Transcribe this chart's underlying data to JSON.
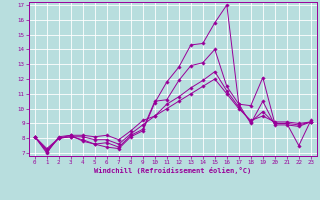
{
  "xlabel": "Windchill (Refroidissement éolien,°C)",
  "line_color": "#990099",
  "bg_color": "#b8dede",
  "grid_color": "#ffffff",
  "xlim": [
    -0.5,
    23.5
  ],
  "ylim": [
    6.8,
    17.2
  ],
  "xticks": [
    0,
    1,
    2,
    3,
    4,
    5,
    6,
    7,
    8,
    9,
    10,
    11,
    12,
    13,
    14,
    15,
    16,
    17,
    18,
    19,
    20,
    21,
    22,
    23
  ],
  "yticks": [
    7,
    8,
    9,
    10,
    11,
    12,
    13,
    14,
    15,
    16,
    17
  ],
  "lines": [
    {
      "x": [
        0,
        1,
        2,
        3,
        4,
        5,
        6,
        7,
        8,
        9,
        10,
        11,
        12,
        13,
        14,
        15,
        16,
        17,
        18,
        19,
        20,
        21,
        22,
        23
      ],
      "y": [
        8.1,
        7.0,
        8.1,
        8.2,
        7.8,
        7.6,
        7.4,
        7.3,
        8.1,
        8.5,
        10.4,
        11.8,
        12.8,
        14.3,
        14.4,
        15.8,
        17.0,
        10.3,
        10.2,
        12.1,
        9.0,
        9.0,
        7.5,
        9.2
      ]
    },
    {
      "x": [
        0,
        1,
        2,
        3,
        4,
        5,
        6,
        7,
        8,
        9,
        10,
        11,
        12,
        13,
        14,
        15,
        16,
        17,
        18,
        19,
        20,
        21,
        22,
        23
      ],
      "y": [
        8.1,
        7.1,
        8.0,
        8.1,
        7.9,
        7.6,
        7.7,
        7.4,
        8.2,
        8.6,
        10.5,
        10.6,
        11.9,
        12.9,
        13.1,
        14.0,
        11.5,
        10.3,
        9.0,
        10.5,
        8.9,
        8.9,
        8.8,
        9.1
      ]
    },
    {
      "x": [
        0,
        1,
        2,
        3,
        4,
        5,
        6,
        7,
        8,
        9,
        10,
        11,
        12,
        13,
        14,
        15,
        16,
        17,
        18,
        19,
        20,
        21,
        22,
        23
      ],
      "y": [
        8.1,
        7.2,
        8.0,
        8.1,
        8.1,
        7.9,
        7.9,
        7.6,
        8.3,
        8.9,
        9.5,
        10.3,
        10.8,
        11.4,
        11.9,
        12.5,
        11.2,
        10.1,
        9.1,
        9.8,
        9.0,
        9.0,
        8.9,
        9.1
      ]
    },
    {
      "x": [
        0,
        1,
        2,
        3,
        4,
        5,
        6,
        7,
        8,
        9,
        10,
        11,
        12,
        13,
        14,
        15,
        16,
        17,
        18,
        19,
        20,
        21,
        22,
        23
      ],
      "y": [
        8.1,
        7.3,
        8.0,
        8.2,
        8.2,
        8.1,
        8.2,
        7.9,
        8.5,
        9.2,
        9.5,
        10.0,
        10.5,
        11.0,
        11.5,
        12.0,
        11.0,
        10.0,
        9.2,
        9.5,
        9.1,
        9.1,
        9.0,
        9.1
      ]
    }
  ],
  "tick_fontsize": 4.2,
  "label_fontsize": 5.0
}
